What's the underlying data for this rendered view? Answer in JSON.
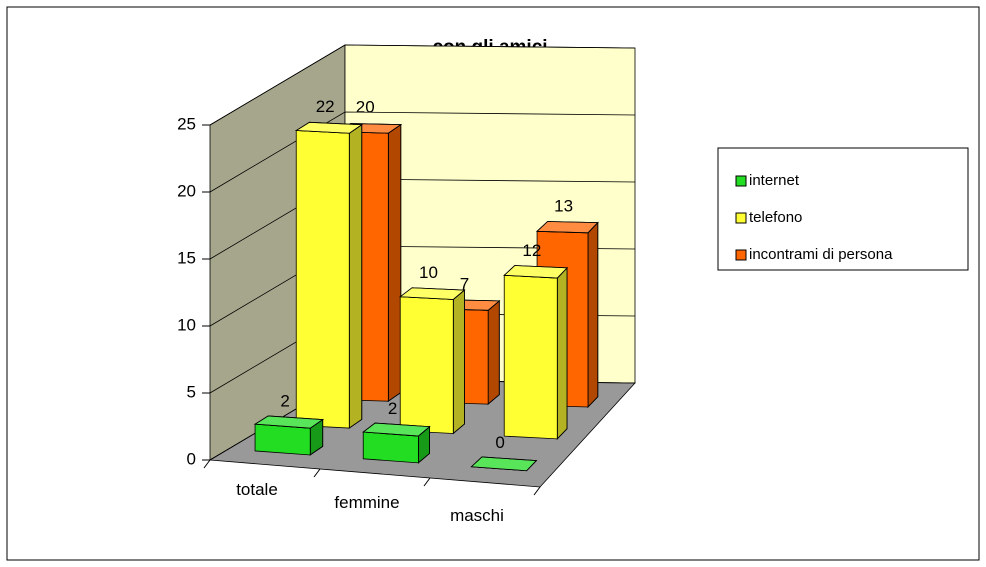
{
  "chart_data": {
    "type": "bar3d",
    "title": "con gli amici",
    "categories": [
      "totale",
      "femmine",
      "maschi"
    ],
    "series": [
      {
        "name": "internet",
        "color": "#22dd22",
        "values": [
          2,
          2,
          0
        ]
      },
      {
        "name": "telefono",
        "color": "#ffff33",
        "values": [
          22,
          10,
          12
        ]
      },
      {
        "name": "incontrami di persona",
        "color": "#ff6600",
        "values": [
          20,
          7,
          13
        ]
      }
    ],
    "ylim": [
      0,
      25
    ],
    "yticks": [
      0,
      5,
      10,
      15,
      20,
      25
    ],
    "grid": true,
    "legend": "right"
  }
}
